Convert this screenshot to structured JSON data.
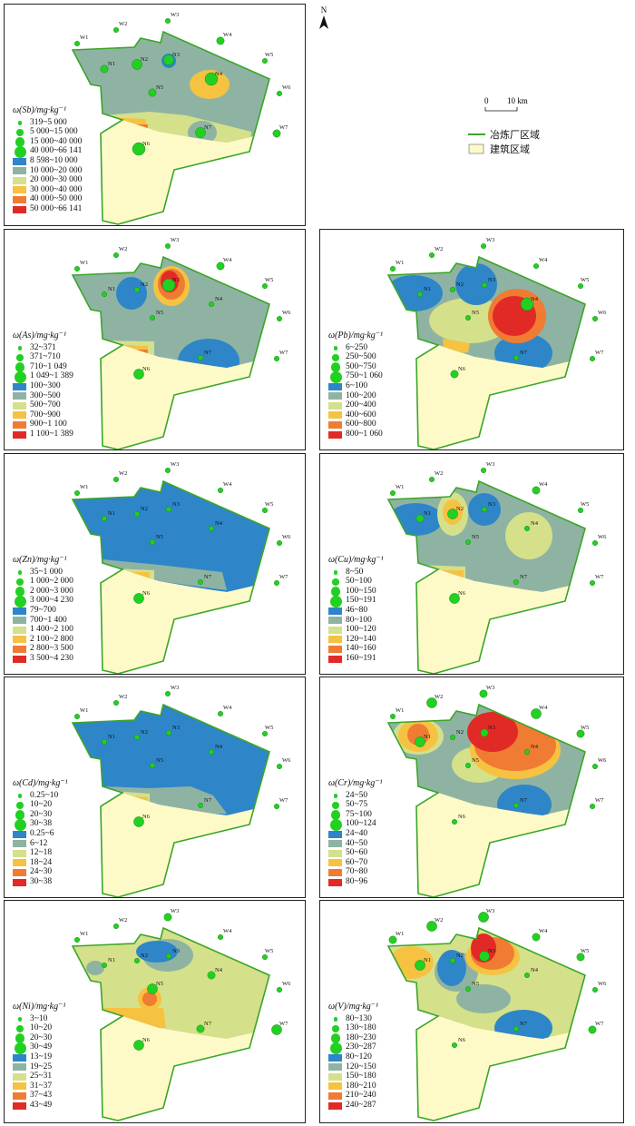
{
  "map": {
    "north_label": "N",
    "scale": {
      "zero": "0",
      "dist": "10 km"
    },
    "legend": {
      "smelter_label": "冶炼厂区域",
      "building_label": "建筑区域",
      "smelter_color": "#3aa627",
      "building_color": "#fdfac8"
    },
    "stations_inner": [
      "N1",
      "N2",
      "N3",
      "N4",
      "N5",
      "N6",
      "N7"
    ],
    "stations_outer": [
      "W1",
      "W2",
      "W3",
      "W4",
      "W5",
      "W6",
      "W7"
    ],
    "panels": [
      {
        "id": "sb",
        "title": "ω(Sb)/mg·kg⁻¹",
        "dots": [
          "319~5 000",
          "5 000~15 000",
          "15 000~40 000",
          "40 000~66 141"
        ],
        "classes": [
          {
            "c": "#2e86c8",
            "t": "8 598~10 000"
          },
          {
            "c": "#8fb3a3",
            "t": "10 000~20 000"
          },
          {
            "c": "#d5e08a",
            "t": "20 000~30 000"
          },
          {
            "c": "#f6c241",
            "t": "30 000~40 000"
          },
          {
            "c": "#f07b33",
            "t": "40 000~50 000"
          },
          {
            "c": "#e12a26",
            "t": "50 000~66 141"
          }
        ]
      },
      {
        "id": "as",
        "title": "ω(As)/mg·kg⁻¹",
        "dots": [
          "32~371",
          "371~710",
          "710~1 049",
          "1 049~1 389"
        ],
        "classes": [
          {
            "c": "#2e86c8",
            "t": "100~300"
          },
          {
            "c": "#8fb3a3",
            "t": "300~500"
          },
          {
            "c": "#d5e08a",
            "t": "500~700"
          },
          {
            "c": "#f6c241",
            "t": "700~900"
          },
          {
            "c": "#f07b33",
            "t": "900~1 100"
          },
          {
            "c": "#e12a26",
            "t": "1 100~1 389"
          }
        ]
      },
      {
        "id": "pb",
        "title": "ω(Pb)/mg·kg⁻¹",
        "dots": [
          "6~250",
          "250~500",
          "500~750",
          "750~1 060"
        ],
        "classes": [
          {
            "c": "#2e86c8",
            "t": "6~100"
          },
          {
            "c": "#8fb3a3",
            "t": "100~200"
          },
          {
            "c": "#d5e08a",
            "t": "200~400"
          },
          {
            "c": "#f6c241",
            "t": "400~600"
          },
          {
            "c": "#f07b33",
            "t": "600~800"
          },
          {
            "c": "#e12a26",
            "t": "800~1 060"
          }
        ]
      },
      {
        "id": "zn",
        "title": "ω(Zn)/mg·kg⁻¹",
        "dots": [
          "35~1 000",
          "1 000~2 000",
          "2 000~3 000",
          "3 000~4 230"
        ],
        "classes": [
          {
            "c": "#2e86c8",
            "t": "79~700"
          },
          {
            "c": "#8fb3a3",
            "t": "700~1 400"
          },
          {
            "c": "#d5e08a",
            "t": "1 400~2 100"
          },
          {
            "c": "#f6c241",
            "t": "2 100~2 800"
          },
          {
            "c": "#f07b33",
            "t": "2 800~3 500"
          },
          {
            "c": "#e12a26",
            "t": "3 500~4 230"
          }
        ]
      },
      {
        "id": "cu",
        "title": "ω(Cu)/mg·kg⁻¹",
        "dots": [
          "8~50",
          "50~100",
          "100~150",
          "150~191"
        ],
        "classes": [
          {
            "c": "#2e86c8",
            "t": "46~80"
          },
          {
            "c": "#8fb3a3",
            "t": "80~100"
          },
          {
            "c": "#d5e08a",
            "t": "100~120"
          },
          {
            "c": "#f6c241",
            "t": "120~140"
          },
          {
            "c": "#f07b33",
            "t": "140~160"
          },
          {
            "c": "#e12a26",
            "t": "160~191"
          }
        ]
      },
      {
        "id": "cd",
        "title": "ω(Cd)/mg·kg⁻¹",
        "dots": [
          "0.25~10",
          "10~20",
          "20~30",
          "30~38"
        ],
        "classes": [
          {
            "c": "#2e86c8",
            "t": "0.25~6"
          },
          {
            "c": "#8fb3a3",
            "t": "6~12"
          },
          {
            "c": "#d5e08a",
            "t": "12~18"
          },
          {
            "c": "#f6c241",
            "t": "18~24"
          },
          {
            "c": "#f07b33",
            "t": "24~30"
          },
          {
            "c": "#e12a26",
            "t": "30~38"
          }
        ]
      },
      {
        "id": "cr",
        "title": "ω(Cr)/mg·kg⁻¹",
        "dots": [
          "24~50",
          "50~75",
          "75~100",
          "100~124"
        ],
        "classes": [
          {
            "c": "#2e86c8",
            "t": "24~40"
          },
          {
            "c": "#8fb3a3",
            "t": "40~50"
          },
          {
            "c": "#d5e08a",
            "t": "50~60"
          },
          {
            "c": "#f6c241",
            "t": "60~70"
          },
          {
            "c": "#f07b33",
            "t": "70~80"
          },
          {
            "c": "#e12a26",
            "t": "80~96"
          }
        ]
      },
      {
        "id": "ni",
        "title": "ω(Ni)/mg·kg⁻¹",
        "dots": [
          "3~10",
          "10~20",
          "20~30",
          "30~49"
        ],
        "classes": [
          {
            "c": "#2e86c8",
            "t": "13~19"
          },
          {
            "c": "#8fb3a3",
            "t": "19~25"
          },
          {
            "c": "#d5e08a",
            "t": "25~31"
          },
          {
            "c": "#f6c241",
            "t": "31~37"
          },
          {
            "c": "#f07b33",
            "t": "37~43"
          },
          {
            "c": "#e12a26",
            "t": "43~49"
          }
        ]
      },
      {
        "id": "v",
        "title": "ω(V)/mg·kg⁻¹",
        "dots": [
          "80~130",
          "130~180",
          "180~230",
          "230~287"
        ],
        "classes": [
          {
            "c": "#2e86c8",
            "t": "80~120"
          },
          {
            "c": "#8fb3a3",
            "t": "120~150"
          },
          {
            "c": "#d5e08a",
            "t": "150~180"
          },
          {
            "c": "#f6c241",
            "t": "180~210"
          },
          {
            "c": "#f07b33",
            "t": "210~240"
          },
          {
            "c": "#e12a26",
            "t": "240~287"
          }
        ]
      }
    ]
  }
}
